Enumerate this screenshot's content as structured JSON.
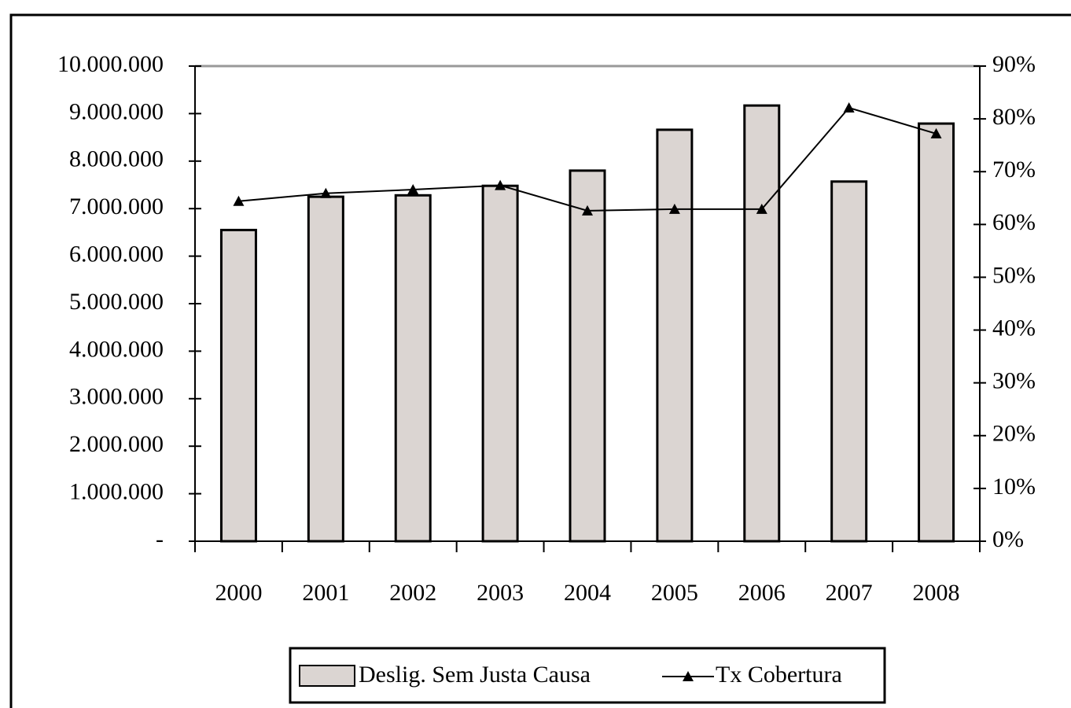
{
  "chart_data": {
    "type": "bar",
    "categories": [
      "2000",
      "2001",
      "2002",
      "2003",
      "2004",
      "2005",
      "2006",
      "2007",
      "2008"
    ],
    "series": [
      {
        "name": "Deslig. Sem Justa Causa",
        "color": "#dbd5d2",
        "type": "bar",
        "values": [
          6550000,
          7250000,
          7280000,
          7480000,
          7800000,
          8660000,
          9170000,
          7570000,
          8790000
        ]
      },
      {
        "name": "Tx Cobertura",
        "color": "#000000",
        "type": "line",
        "axis": "y2",
        "values": [
          64.4,
          65.9,
          66.6,
          67.4,
          62.6,
          62.9,
          62.9,
          82.1,
          77.2
        ]
      }
    ],
    "ylim": [
      0,
      10000000
    ],
    "yticks": [
      {
        "value": 0,
        "label": "-"
      },
      {
        "value": 1000000,
        "label": "1.000.000"
      },
      {
        "value": 2000000,
        "label": "2.000.000"
      },
      {
        "value": 3000000,
        "label": "3.000.000"
      },
      {
        "value": 4000000,
        "label": "4.000.000"
      },
      {
        "value": 5000000,
        "label": "5.000.000"
      },
      {
        "value": 6000000,
        "label": "6.000.000"
      },
      {
        "value": 7000000,
        "label": "7.000.000"
      },
      {
        "value": 8000000,
        "label": "8.000.000"
      },
      {
        "value": 9000000,
        "label": "9.000.000"
      },
      {
        "value": 10000000,
        "label": "10.000.000"
      }
    ],
    "y2lim": [
      0,
      90
    ],
    "y2ticks": [
      {
        "value": 0,
        "label": "0%"
      },
      {
        "value": 10,
        "label": "10%"
      },
      {
        "value": 20,
        "label": "20%"
      },
      {
        "value": 30,
        "label": "30%"
      },
      {
        "value": 40,
        "label": "40%"
      },
      {
        "value": 50,
        "label": "50%"
      },
      {
        "value": 60,
        "label": "60%"
      },
      {
        "value": 70,
        "label": "70%"
      },
      {
        "value": 80,
        "label": "80%"
      },
      {
        "value": 90,
        "label": "90%"
      }
    ],
    "legend": "bottom"
  }
}
